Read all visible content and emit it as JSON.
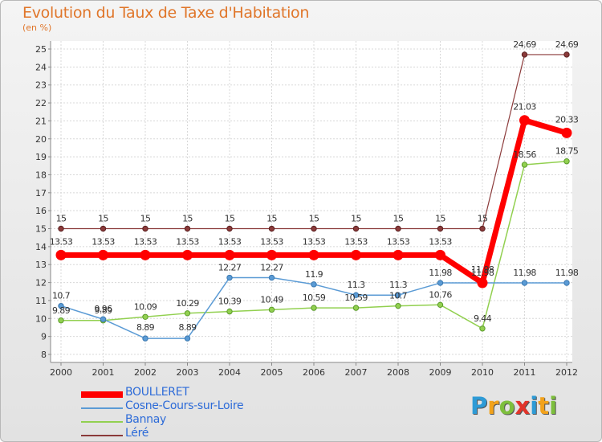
{
  "chart_data": {
    "type": "line",
    "title": "Evolution du Taux de Taxe d'Habitation",
    "subtitle": "(en %)",
    "xlabel": "",
    "ylabel": "(en %)",
    "ylim": [
      8,
      25
    ],
    "yticks": [
      8,
      9,
      10,
      11,
      12,
      13,
      14,
      15,
      16,
      17,
      18,
      19,
      20,
      21,
      22,
      23,
      24,
      25
    ],
    "categories": [
      "2000",
      "2001",
      "2002",
      "2003",
      "2004",
      "2005",
      "2006",
      "2007",
      "2008",
      "2009",
      "2010",
      "2011",
      "2012"
    ],
    "grid": true,
    "legend_position": "bottom-left",
    "series": [
      {
        "name": "BOULLERET",
        "color": "#ff0000",
        "values": [
          13.53,
          13.53,
          13.53,
          13.53,
          13.53,
          13.53,
          13.53,
          13.53,
          13.53,
          13.53,
          11.98,
          21.03,
          20.33
        ],
        "labels": [
          "13.53",
          "13.53",
          "13.53",
          "13.53",
          "13.53",
          "13.53",
          "13.53",
          "13.53",
          "13.53",
          "13.53",
          "11.98",
          "21.03",
          "20.33"
        ]
      },
      {
        "name": "Cosne-Cours-sur-Loire",
        "color": "#5b9bd5",
        "values": [
          10.7,
          9.96,
          8.89,
          8.89,
          12.27,
          12.27,
          11.9,
          11.3,
          11.3,
          11.98,
          11.98,
          11.98,
          11.98
        ],
        "labels": [
          "10.7",
          "9.96",
          "8.89",
          "8.89",
          "12.27",
          "12.27",
          "11.9",
          "11.3",
          "11.3",
          "11.98",
          "11.98",
          "11.98",
          "11.98"
        ]
      },
      {
        "name": "Bannay",
        "color": "#92d050",
        "values": [
          9.89,
          9.89,
          10.09,
          10.29,
          10.39,
          10.49,
          10.59,
          10.59,
          10.7,
          10.76,
          9.44,
          18.56,
          18.75
        ],
        "labels": [
          "9.89",
          "9.89",
          "10.09",
          "10.29",
          "10.39",
          "10.49",
          "10.59",
          "10.59",
          "10.7",
          "10.76",
          "9.44",
          "18.56",
          "18.75"
        ]
      },
      {
        "name": "Léré",
        "color": "#8b3a3a",
        "values": [
          15,
          15,
          15,
          15,
          15,
          15,
          15,
          15,
          15,
          15,
          15,
          24.69,
          24.69
        ],
        "labels": [
          "15",
          "15",
          "15",
          "15",
          "15",
          "15",
          "15",
          "15",
          "15",
          "15",
          "15",
          "24.69",
          "24.69"
        ]
      }
    ]
  },
  "logo": {
    "letters": [
      "P",
      "r",
      "o",
      "x",
      "i",
      "t",
      "i"
    ],
    "colors": [
      "#2e9bd6",
      "#f2a21b",
      "#7dbf3c",
      "#e2342a",
      "#2e9bd6",
      "#f2a21b",
      "#7dbf3c"
    ]
  }
}
